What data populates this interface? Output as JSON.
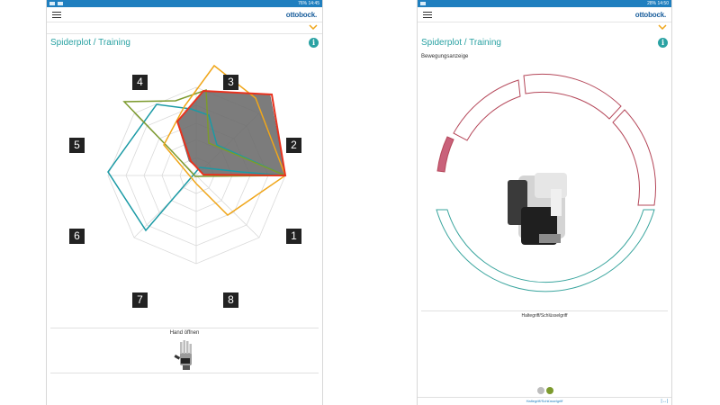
{
  "left": {
    "status_time": "14:45",
    "status_battery": "76%",
    "logo": "ottobock.",
    "title": "Spiderplot / Training",
    "info": "i",
    "axes": [
      "1",
      "2",
      "3",
      "4",
      "5",
      "6",
      "7",
      "8"
    ],
    "hand_label": "Hand öffnen",
    "colors": {
      "red": "#e8321e",
      "orange": "#f0a61a",
      "olive": "#7c9a2d",
      "teal": "#1a9aa5",
      "fill": "#6b6b6b"
    }
  },
  "right": {
    "status_time": "14:50",
    "status_battery": "28%",
    "logo": "ottobock.",
    "title": "Spiderplot / Training",
    "info": "i",
    "motion_label": "Bewegungsanzeige",
    "grip_label": "Haltegriff/Schlüsselgriff",
    "bottom_tab": "Haltegriff/Schlüsselgriff",
    "dots": [
      "#bdbdbd",
      "#7c9a2d"
    ],
    "arc_colors": {
      "red": "#b5485a",
      "teal": "#3aa59e",
      "fill": "#c9617a"
    }
  }
}
